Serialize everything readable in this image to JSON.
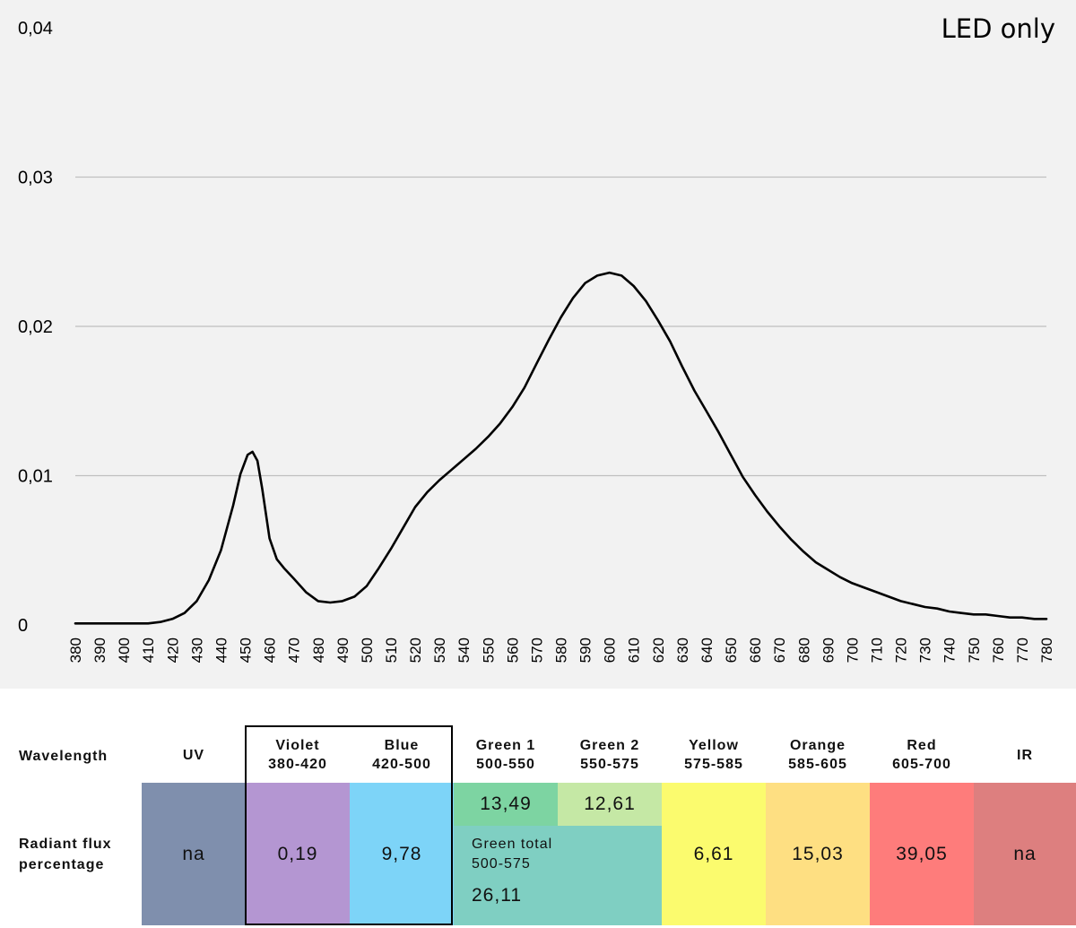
{
  "chart_data": {
    "type": "line",
    "title": "LED only",
    "xlabel": "",
    "ylabel": "",
    "xlim": [
      380,
      780
    ],
    "ylim": [
      0,
      0.04
    ],
    "grid": true,
    "x_ticks": [
      "380",
      "390",
      "400",
      "410",
      "420",
      "430",
      "440",
      "450",
      "460",
      "470",
      "480",
      "490",
      "500",
      "510",
      "520",
      "530",
      "540",
      "550",
      "560",
      "570",
      "580",
      "590",
      "600",
      "610",
      "620",
      "630",
      "640",
      "650",
      "660",
      "670",
      "680",
      "690",
      "700",
      "710",
      "720",
      "730",
      "740",
      "750",
      "760",
      "770",
      "780"
    ],
    "y_ticks": [
      "0",
      "0,01",
      "0,02",
      "0,03",
      "0,04"
    ],
    "series": [
      {
        "x": [
          380,
          385,
          390,
          395,
          400,
          405,
          410,
          415,
          420,
          425,
          430,
          435,
          440,
          445,
          448,
          451,
          453,
          455,
          457,
          460,
          463,
          466,
          470,
          475,
          480,
          485,
          490,
          495,
          500,
          505,
          510,
          515,
          520,
          525,
          530,
          535,
          540,
          545,
          550,
          555,
          560,
          565,
          570,
          575,
          580,
          585,
          590,
          595,
          600,
          605,
          610,
          615,
          620,
          625,
          630,
          635,
          640,
          645,
          650,
          655,
          660,
          665,
          670,
          675,
          680,
          685,
          690,
          695,
          700,
          705,
          710,
          715,
          720,
          725,
          730,
          735,
          740,
          745,
          750,
          755,
          760,
          765,
          770,
          775,
          780
        ],
        "values": [
          0.0001,
          0.0001,
          0.0001,
          0.0001,
          0.0001,
          0.0001,
          0.0001,
          0.0002,
          0.0004,
          0.0008,
          0.0016,
          0.003,
          0.005,
          0.008,
          0.0101,
          0.0114,
          0.0116,
          0.011,
          0.0091,
          0.0058,
          0.0044,
          0.0038,
          0.0031,
          0.0022,
          0.0016,
          0.0015,
          0.0016,
          0.0019,
          0.0026,
          0.0038,
          0.0051,
          0.0065,
          0.0079,
          0.0089,
          0.0097,
          0.0104,
          0.0111,
          0.0118,
          0.0126,
          0.0135,
          0.0146,
          0.0159,
          0.0175,
          0.0191,
          0.0206,
          0.0219,
          0.0229,
          0.0234,
          0.0236,
          0.0234,
          0.0227,
          0.0217,
          0.0204,
          0.019,
          0.0173,
          0.0157,
          0.0143,
          0.0129,
          0.0114,
          0.0099,
          0.0087,
          0.0076,
          0.0066,
          0.0057,
          0.0049,
          0.0042,
          0.0037,
          0.0032,
          0.0028,
          0.0025,
          0.0022,
          0.0019,
          0.0016,
          0.0014,
          0.0012,
          0.0011,
          0.0009,
          0.0008,
          0.0007,
          0.0007,
          0.0006,
          0.0005,
          0.0005,
          0.0004,
          0.0004
        ]
      }
    ]
  },
  "table": {
    "row_labels": {
      "wavelength": "Wavelength",
      "radiant_line1": "Radiant flux",
      "radiant_line2": "percentage"
    },
    "bands": [
      {
        "name": "UV",
        "range": "",
        "value": "na",
        "color": "#7f8fad"
      },
      {
        "name": "Violet",
        "range": "380-420",
        "value": "0,19",
        "color": "#b496d2"
      },
      {
        "name": "Blue",
        "range": "420-500",
        "value": "9,78",
        "color": "#7dd4f8"
      },
      {
        "name": "Green 1",
        "range": "500-550",
        "value": "13,49",
        "color": "#7dd4a2"
      },
      {
        "name": "Green 2",
        "range": "550-575",
        "value": "12,61",
        "color": "#c5e8a5"
      },
      {
        "name": "Yellow",
        "range": "575-585",
        "value": "6,61",
        "color": "#fbfb6e"
      },
      {
        "name": "Orange",
        "range": "585-605",
        "value": "15,03",
        "color": "#fedf82"
      },
      {
        "name": "Red",
        "range": "605-700",
        "value": "39,05",
        "color": "#fe7c7b"
      },
      {
        "name": "IR",
        "range": "",
        "value": "na",
        "color": "#dd7f7f"
      }
    ],
    "green_total": {
      "label_line1": "Green total",
      "label_line2": "500-575",
      "value": "26,11",
      "color": "#7fcfc2"
    }
  }
}
